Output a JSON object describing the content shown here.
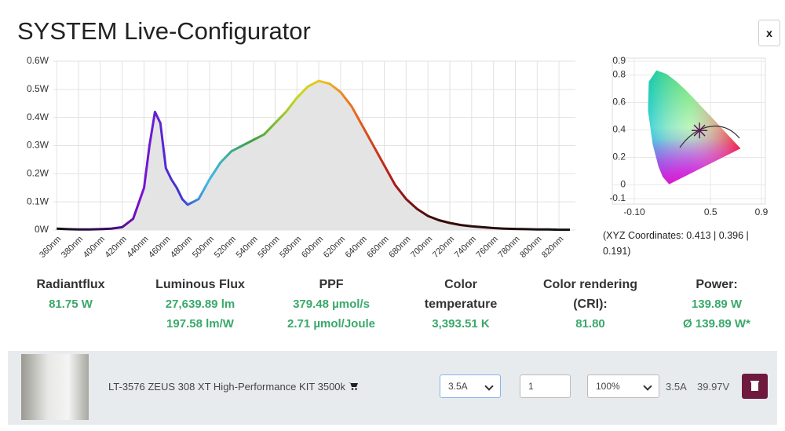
{
  "title": "SYSTEM Live-Configurator",
  "close": "x",
  "chart_data": [
    {
      "type": "line",
      "x": [
        360,
        370,
        380,
        390,
        400,
        410,
        420,
        430,
        440,
        445,
        450,
        455,
        460,
        465,
        470,
        475,
        480,
        490,
        500,
        510,
        520,
        530,
        540,
        550,
        560,
        570,
        580,
        590,
        600,
        610,
        620,
        630,
        640,
        650,
        660,
        670,
        680,
        690,
        700,
        710,
        720,
        730,
        740,
        750,
        760,
        770,
        780,
        790,
        800,
        810,
        820,
        830
      ],
      "values": [
        0.005,
        0.003,
        0.002,
        0.002,
        0.003,
        0.005,
        0.01,
        0.04,
        0.15,
        0.3,
        0.42,
        0.38,
        0.22,
        0.18,
        0.15,
        0.11,
        0.09,
        0.11,
        0.18,
        0.24,
        0.28,
        0.3,
        0.32,
        0.34,
        0.38,
        0.42,
        0.47,
        0.51,
        0.53,
        0.52,
        0.49,
        0.44,
        0.37,
        0.3,
        0.23,
        0.16,
        0.11,
        0.075,
        0.05,
        0.035,
        0.025,
        0.018,
        0.013,
        0.01,
        0.007,
        0.005,
        0.004,
        0.003,
        0.002,
        0.002,
        0.001,
        0.001
      ],
      "xlim": [
        357,
        835
      ],
      "ylim": [
        0,
        0.6
      ],
      "xticks": [
        {
          "value": 360,
          "label": "360nm"
        },
        {
          "value": 380,
          "label": "380nm"
        },
        {
          "value": 400,
          "label": "400nm"
        },
        {
          "value": 420,
          "label": "420nm"
        },
        {
          "value": 440,
          "label": "440nm"
        },
        {
          "value": 460,
          "label": "460nm"
        },
        {
          "value": 480,
          "label": "480nm"
        },
        {
          "value": 500,
          "label": "500nm"
        },
        {
          "value": 520,
          "label": "520nm"
        },
        {
          "value": 540,
          "label": "540nm"
        },
        {
          "value": 560,
          "label": "560nm"
        },
        {
          "value": 580,
          "label": "580nm"
        },
        {
          "value": 600,
          "label": "600nm"
        },
        {
          "value": 620,
          "label": "620nm"
        },
        {
          "value": 640,
          "label": "640nm"
        },
        {
          "value": 660,
          "label": "660nm"
        },
        {
          "value": 680,
          "label": "680nm"
        },
        {
          "value": 700,
          "label": "700nm"
        },
        {
          "value": 720,
          "label": "720nm"
        },
        {
          "value": 740,
          "label": "740nm"
        },
        {
          "value": 760,
          "label": "760nm"
        },
        {
          "value": 780,
          "label": "780nm"
        },
        {
          "value": 800,
          "label": "800nm"
        },
        {
          "value": 820,
          "label": "820nm"
        }
      ],
      "yticks": [
        {
          "value": 0,
          "label": "0W"
        },
        {
          "value": 0.1,
          "label": "0.1W"
        },
        {
          "value": 0.2,
          "label": "0.2W"
        },
        {
          "value": 0.3,
          "label": "0.3W"
        },
        {
          "value": 0.4,
          "label": "0.4W"
        },
        {
          "value": 0.5,
          "label": "0.5W"
        },
        {
          "value": 0.6,
          "label": "0.6W"
        }
      ],
      "grid": true
    },
    {
      "type": "scatter",
      "x": [
        0.413
      ],
      "values": [
        0.396
      ],
      "color": "#5a1a5a",
      "xlim": [
        -0.1,
        0.9
      ],
      "ylim": [
        -0.1,
        0.9
      ],
      "xticks": [
        {
          "value": -0.1,
          "label": "-0.10"
        },
        0.5,
        0.9
      ],
      "yticks": [
        0.9,
        0.8,
        0.6,
        0.4,
        0.2,
        0,
        -0.1
      ],
      "grid": true
    }
  ],
  "cie_caption": "(XYZ Coordinates: 0.413 | 0.396 | 0.191)",
  "stats": [
    {
      "label": "Radiantflux",
      "values": [
        "81.75 W"
      ]
    },
    {
      "label": "Luminous Flux",
      "values": [
        "27,639.89 lm",
        "197.58 lm/W"
      ]
    },
    {
      "label": "PPF",
      "values": [
        "379.48 µmol/s",
        "2.71 µmol/Joule"
      ]
    },
    {
      "label": "Color temperature",
      "values": [
        "3,393.51 K"
      ]
    },
    {
      "label": "Color rendering (CRI):",
      "values": [
        "81.80"
      ]
    },
    {
      "label": "Power:",
      "values": [
        "139.89 W",
        "Ø 139.89 W*"
      ]
    }
  ],
  "product": {
    "name": "LT-3576 ZEUS 308 XT High-Performance KIT 3500k",
    "current_select": "3.5A",
    "quantity": "1",
    "dimming": "100%",
    "current": "3.5A",
    "voltage": "39.97V"
  }
}
